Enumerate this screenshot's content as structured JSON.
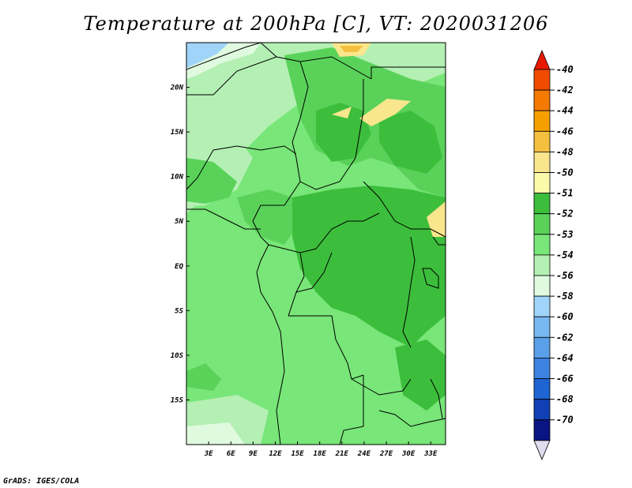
{
  "title": "Temperature at 200hPa [C], VT: 2020031206",
  "credit": "GrADS: IGES/COLA",
  "map": {
    "lat_labels": [
      "20N",
      "15N",
      "10N",
      "5N",
      "EQ",
      "5S",
      "10S",
      "15S"
    ],
    "lat_values": [
      20,
      15,
      10,
      5,
      0,
      -5,
      -10,
      -15
    ],
    "lon_labels": [
      "3E",
      "6E",
      "9E",
      "12E",
      "15E",
      "18E",
      "21E",
      "24E",
      "27E",
      "30E",
      "33E"
    ],
    "lon_values": [
      3,
      6,
      9,
      12,
      15,
      18,
      21,
      24,
      27,
      30,
      33
    ],
    "lon_range": [
      0,
      35
    ],
    "lat_range": [
      -20,
      25
    ]
  },
  "colorbar": {
    "labels": [
      "-40",
      "-42",
      "-44",
      "-46",
      "-48",
      "-50",
      "-51",
      "-52",
      "-53",
      "-54",
      "-56",
      "-58",
      "-60",
      "-62",
      "-64",
      "-66",
      "-68",
      "-70"
    ],
    "colors": [
      "#e81800",
      "#f04b00",
      "#f57a00",
      "#f5a000",
      "#f5c040",
      "#fae68c",
      "#fafaaa",
      "#3cbe3c",
      "#5ad25a",
      "#78e678",
      "#b4f0b4",
      "#e0fae0",
      "#a0d4f8",
      "#78b8f0",
      "#5aa0e8",
      "#3c82e0",
      "#1e64d2",
      "#1040b4",
      "#0a1482",
      "#e0dcf0"
    ]
  },
  "chart_data": {
    "type": "heatmap",
    "title": "Temperature at 200hPa [C], VT: 2020031206",
    "xlabel": "",
    "ylabel": "",
    "x_ticks": [
      "3E",
      "6E",
      "9E",
      "12E",
      "15E",
      "18E",
      "21E",
      "24E",
      "27E",
      "30E",
      "33E"
    ],
    "y_ticks": [
      "20N",
      "15N",
      "10N",
      "5N",
      "EQ",
      "5S",
      "10S",
      "15S"
    ],
    "colorbar_levels": [
      -40,
      -42,
      -44,
      -46,
      -48,
      -50,
      -51,
      -52,
      -53,
      -54,
      -56,
      -58,
      -60,
      -62,
      -64,
      -66,
      -68,
      -70
    ]
  }
}
